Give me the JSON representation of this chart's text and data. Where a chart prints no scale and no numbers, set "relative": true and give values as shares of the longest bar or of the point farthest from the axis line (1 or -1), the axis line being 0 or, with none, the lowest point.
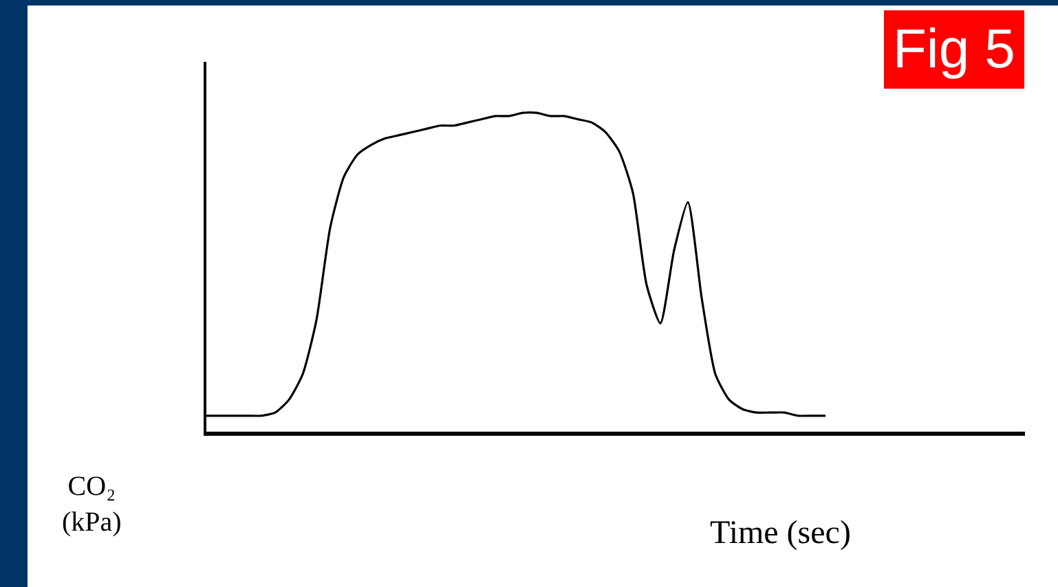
{
  "chart_data": {
    "type": "line",
    "relative": true,
    "xlabel": "Time (sec)",
    "ylabel": "CO₂ (kPa)",
    "annotations": [
      "Fig 5"
    ],
    "categories": [
      null,
      null,
      null,
      null,
      null,
      null,
      null,
      null,
      null,
      null,
      null,
      null,
      null,
      null,
      null,
      null,
      null,
      null,
      null,
      null,
      null,
      null,
      null,
      null,
      null,
      null,
      null,
      null,
      null,
      null,
      null,
      null,
      null,
      null,
      null,
      null,
      null,
      null,
      null,
      null,
      null,
      null,
      null,
      null,
      null,
      null,
      null,
      null,
      null,
      null,
      null,
      null,
      null,
      null,
      null,
      null,
      null,
      null,
      null,
      null
    ],
    "series": [
      {
        "color": "#000000",
        "values": [
          0.05,
          0.05,
          0.05,
          0.05,
          0.05,
          0.06,
          0.1,
          0.18,
          0.35,
          0.64,
          0.8,
          0.87,
          0.9,
          0.92,
          0.93,
          0.94,
          0.95,
          0.96,
          0.96,
          0.97,
          0.98,
          0.99,
          0.99,
          1,
          1,
          0.99,
          0.99,
          0.98,
          0.97,
          0.94,
          0.88,
          0.75,
          0.46,
          0.34,
          0.57,
          0.72,
          0.42,
          0.18,
          0.1,
          0.07,
          0.06,
          0.06,
          0.06,
          0.05,
          0.05,
          0.05,
          null,
          null,
          null,
          null,
          null,
          null,
          null,
          null,
          null,
          null,
          null,
          null,
          null,
          null
        ]
      }
    ],
    "grid": false,
    "marker": "none",
    "line_style": "solid"
  }
}
